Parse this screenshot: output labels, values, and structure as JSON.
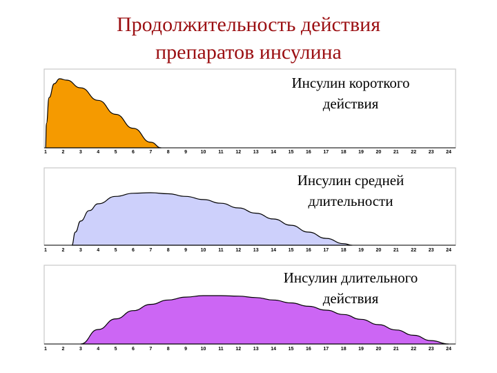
{
  "title": {
    "line1": "Продолжительность действия",
    "line2": "препаратов инсулина"
  },
  "colors": {
    "title": "#9b0f12",
    "short": "#f59a00",
    "medium": "#cdd0fb",
    "long": "#cc66f4",
    "frame": "#c8c8c8"
  },
  "chart_data": [
    {
      "type": "area",
      "label_lines": [
        "Инсулин короткого",
        "действия"
      ],
      "x_ticks": [
        "1",
        "2",
        "3",
        "4",
        "5",
        "6",
        "7",
        "8",
        "9",
        "10",
        "11",
        "12",
        "13",
        "14",
        "15",
        "16",
        "17",
        "18",
        "19",
        "20",
        "21",
        "22",
        "23",
        "24"
      ],
      "xlim": [
        1,
        24
      ],
      "ylim": [
        0,
        1
      ],
      "series": [
        {
          "color": "#f59a00",
          "x": [
            1,
            1.05,
            1.2,
            1.5,
            1.8,
            2.2,
            3,
            4,
            5,
            6,
            7,
            7.6
          ],
          "y": [
            0,
            0.35,
            0.72,
            0.92,
            0.99,
            0.97,
            0.86,
            0.68,
            0.48,
            0.28,
            0.08,
            0
          ]
        }
      ]
    },
    {
      "type": "area",
      "label_lines": [
        "Инсулин средней",
        "длительности"
      ],
      "x_ticks": [
        "1",
        "2",
        "3",
        "4",
        "5",
        "6",
        "7",
        "8",
        "9",
        "10",
        "11",
        "12",
        "13",
        "14",
        "15",
        "16",
        "17",
        "18",
        "19",
        "20",
        "21",
        "22",
        "23",
        "24"
      ],
      "xlim": [
        1,
        24
      ],
      "ylim": [
        0,
        1
      ],
      "series": [
        {
          "color": "#cdd0fb",
          "x": [
            2.5,
            2.7,
            3,
            3.5,
            4,
            5,
            6,
            7,
            8,
            9,
            10,
            11,
            12,
            13,
            14,
            15,
            16,
            17,
            18,
            18.5
          ],
          "y": [
            0,
            0.25,
            0.46,
            0.66,
            0.79,
            0.93,
            0.99,
            1.0,
            0.98,
            0.93,
            0.87,
            0.8,
            0.71,
            0.61,
            0.5,
            0.38,
            0.25,
            0.13,
            0.03,
            0
          ]
        }
      ]
    },
    {
      "type": "area",
      "label_lines": [
        "Инсулин длительного",
        "действия"
      ],
      "x_ticks": [
        "1",
        "2",
        "3",
        "4",
        "5",
        "6",
        "7",
        "8",
        "9",
        "10",
        "11",
        "12",
        "13",
        "14",
        "15",
        "16",
        "17",
        "18",
        "19",
        "20",
        "21",
        "22",
        "23",
        "24"
      ],
      "xlim": [
        1,
        24
      ],
      "ylim": [
        0,
        1
      ],
      "series": [
        {
          "color": "#cc66f4",
          "x": [
            3,
            4,
            5,
            6,
            7,
            8,
            9,
            10,
            11,
            12,
            13,
            14,
            15,
            16,
            17,
            18,
            19,
            20,
            21,
            22,
            23,
            24
          ],
          "y": [
            0,
            0.3,
            0.52,
            0.69,
            0.82,
            0.91,
            0.97,
            1.0,
            1.0,
            0.99,
            0.96,
            0.91,
            0.85,
            0.78,
            0.7,
            0.61,
            0.51,
            0.4,
            0.29,
            0.18,
            0.07,
            0
          ]
        }
      ]
    }
  ]
}
